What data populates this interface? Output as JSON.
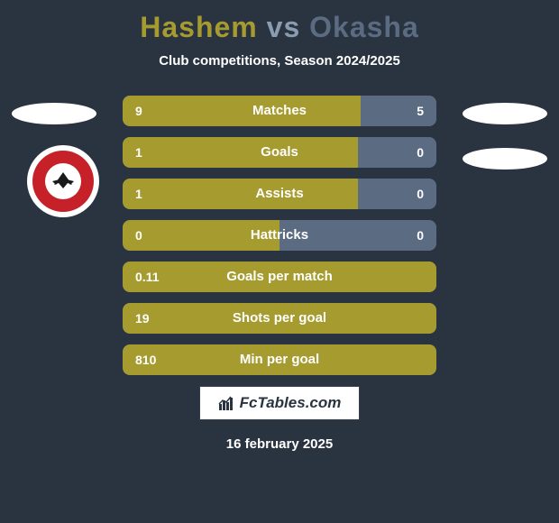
{
  "title": {
    "player1": "Hashem",
    "vs": "vs",
    "player2": "Okasha",
    "player1_color": "#a69b2f",
    "vs_color": "#8a9db0",
    "player2_color": "#5a6b82",
    "fontsize": 32
  },
  "subtitle": "Club competitions, Season 2024/2025",
  "background_color": "#2a3340",
  "bar_fill_color": "#a69b2f",
  "bar_bg_color": "#5a6b82",
  "text_color": "#ffffff",
  "bars": [
    {
      "label": "Matches",
      "left": "9",
      "right": "5",
      "fill_pct": 76
    },
    {
      "label": "Goals",
      "left": "1",
      "right": "0",
      "fill_pct": 75
    },
    {
      "label": "Assists",
      "left": "1",
      "right": "0",
      "fill_pct": 75
    },
    {
      "label": "Hattricks",
      "left": "0",
      "right": "0",
      "fill_pct": 50
    },
    {
      "label": "Goals per match",
      "left": "0.11",
      "right": "",
      "fill_pct": 100
    },
    {
      "label": "Shots per goal",
      "left": "19",
      "right": "",
      "fill_pct": 100
    },
    {
      "label": "Min per goal",
      "left": "810",
      "right": "",
      "fill_pct": 100
    }
  ],
  "badge": {
    "outer_bg": "#ffffff",
    "inner_bg": "#c62128",
    "circle_bg": "#ffffff",
    "eagle_color": "#1a1a1a"
  },
  "branding": "FcTables.com",
  "date": "16 february 2025"
}
